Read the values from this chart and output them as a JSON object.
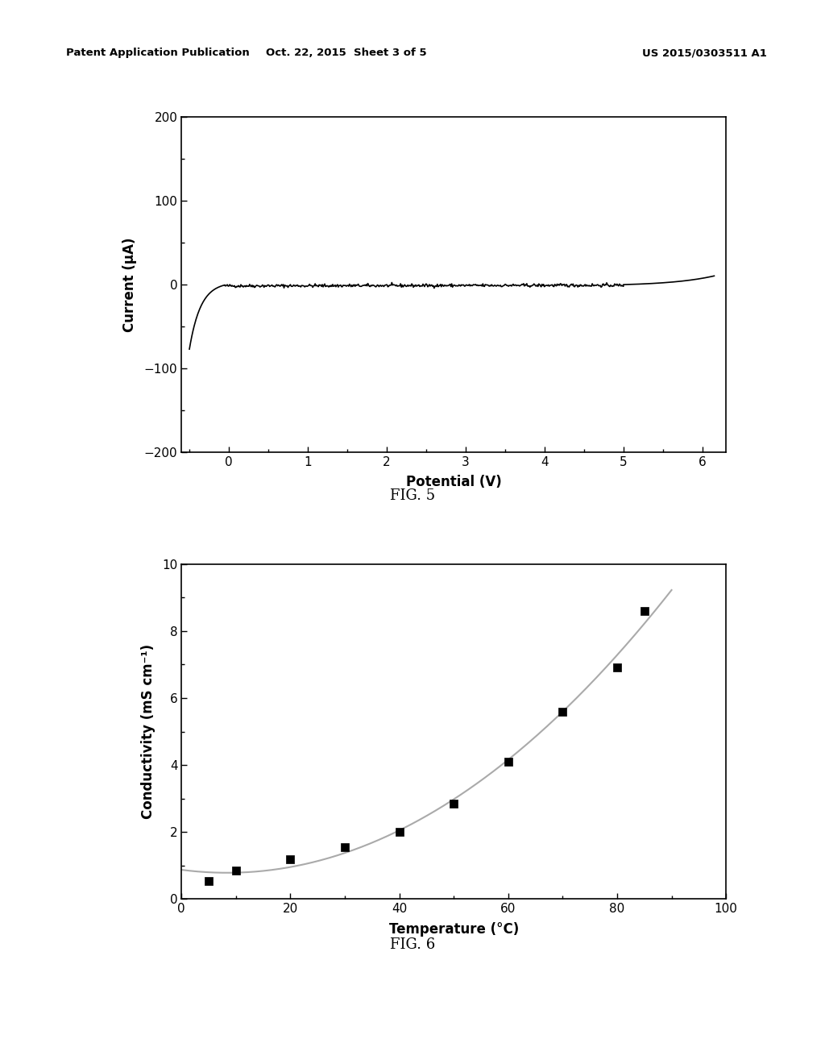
{
  "fig5": {
    "xlabel": "Potential (V)",
    "ylabel": "Current (μA)",
    "xlim": [
      -0.6,
      6.3
    ],
    "ylim": [
      -200,
      200
    ],
    "xticks": [
      0,
      1,
      2,
      3,
      4,
      5,
      6
    ],
    "yticks": [
      -200,
      -100,
      0,
      100,
      200
    ],
    "line_color": "#000000",
    "line_width": 1.2
  },
  "fig6": {
    "xlabel": "Temperature (°C)",
    "ylabel": "Conductivity (mS cm⁻¹)",
    "xlim": [
      0,
      100
    ],
    "ylim": [
      0,
      10
    ],
    "xticks": [
      0,
      20,
      40,
      60,
      80,
      100
    ],
    "yticks": [
      0,
      2,
      4,
      6,
      8,
      10
    ],
    "scatter_x": [
      5,
      10,
      20,
      30,
      40,
      50,
      60,
      70,
      80,
      85
    ],
    "scatter_y": [
      0.55,
      0.85,
      1.2,
      1.55,
      2.0,
      2.85,
      4.1,
      5.6,
      6.9,
      8.6
    ],
    "marker": "s",
    "marker_color": "#000000",
    "marker_size": 7,
    "line_color": "#aaaaaa",
    "line_width": 1.5
  },
  "background_color": "#ffffff",
  "header_left": "Patent Application Publication",
  "header_mid": "Oct. 22, 2015  Sheet 3 of 5",
  "header_right": "US 2015/0303511 A1",
  "fig5_label": "FIG. 5",
  "fig6_label": "FIG. 6",
  "font_color": "#000000"
}
